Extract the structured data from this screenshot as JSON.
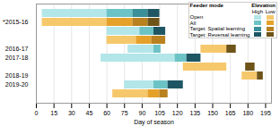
{
  "chart_data": {
    "type": "gantt",
    "x_label": "Day of season",
    "categories": [
      null,
      "*2015-16",
      null,
      null,
      "2016-17",
      "2017-18",
      null,
      "2018-19",
      "2019-20",
      null
    ],
    "xlim": [
      0,
      200
    ],
    "xticks": [
      0,
      15,
      30,
      45,
      60,
      75,
      90,
      105,
      120,
      135,
      150,
      165,
      180,
      195
    ],
    "grid": true,
    "legend": "top-right",
    "legend_title": "Feeder mode",
    "elevation_title": "Elevation",
    "elevations": [
      "High",
      "Low"
    ],
    "series": [
      {
        "name": "Open",
        "elevation": "High",
        "color": "#b3e6e8",
        "values": [
          {
            "row": 0,
            "start": 5,
            "end": 60
          },
          {
            "row": 2,
            "start": 60,
            "end": 88
          },
          {
            "row": 4,
            "start": 78,
            "end": 100
          },
          {
            "row": 5,
            "start": 55,
            "end": 118
          },
          {
            "row": 8,
            "start": 75,
            "end": 100
          }
        ]
      },
      {
        "name": "All",
        "elevation": "High",
        "color": "#6cc3c6",
        "values": [
          {
            "row": 0,
            "start": 60,
            "end": 82
          },
          {
            "row": 2,
            "start": 88,
            "end": 100
          },
          {
            "row": 4,
            "start": 100,
            "end": 106
          },
          {
            "row": 5,
            "start": 118,
            "end": 128
          },
          {
            "row": 8,
            "start": 100,
            "end": 112
          }
        ]
      },
      {
        "name": "Target: Spatial learning",
        "elevation": "High",
        "color": "#3a8f98",
        "values": [
          {
            "row": 0,
            "start": 82,
            "end": 95
          }
        ]
      },
      {
        "name": "Target: Reversal learning",
        "elevation": "High",
        "color": "#1f5663",
        "values": [
          {
            "row": 0,
            "start": 95,
            "end": 105
          },
          {
            "row": 2,
            "start": 100,
            "end": 110
          },
          {
            "row": 5,
            "start": 128,
            "end": 140
          },
          {
            "row": 8,
            "start": 112,
            "end": 125
          }
        ]
      },
      {
        "name": "Open",
        "elevation": "Low",
        "color": "#f6c86c",
        "values": [
          {
            "row": 1,
            "start": 5,
            "end": 60
          },
          {
            "row": 3,
            "start": 60,
            "end": 85
          },
          {
            "row": 4,
            "start": 140,
            "end": 162
          },
          {
            "row": 6,
            "start": 125,
            "end": 162
          },
          {
            "row": 7,
            "start": 175,
            "end": 188
          },
          {
            "row": 9,
            "start": 65,
            "end": 95
          }
        ]
      },
      {
        "name": "All",
        "elevation": "Low",
        "color": "#e5a12a",
        "values": [
          {
            "row": 1,
            "start": 60,
            "end": 82
          },
          {
            "row": 3,
            "start": 85,
            "end": 98
          },
          {
            "row": 9,
            "start": 95,
            "end": 105
          }
        ]
      },
      {
        "name": "Target: Spatial learning",
        "elevation": "Low",
        "color": "#b9811f",
        "values": [
          {
            "row": 1,
            "start": 82,
            "end": 95
          },
          {
            "row": 3,
            "start": 98,
            "end": 110
          },
          {
            "row": 9,
            "start": 105,
            "end": 112
          }
        ]
      },
      {
        "name": "Target: Reversal learning",
        "elevation": "Low",
        "color": "#6e5418",
        "values": [
          {
            "row": 1,
            "start": 95,
            "end": 105
          },
          {
            "row": 4,
            "start": 162,
            "end": 170
          },
          {
            "row": 6,
            "start": 178,
            "end": 186
          },
          {
            "row": 7,
            "start": 188,
            "end": 193
          }
        ]
      }
    ]
  }
}
